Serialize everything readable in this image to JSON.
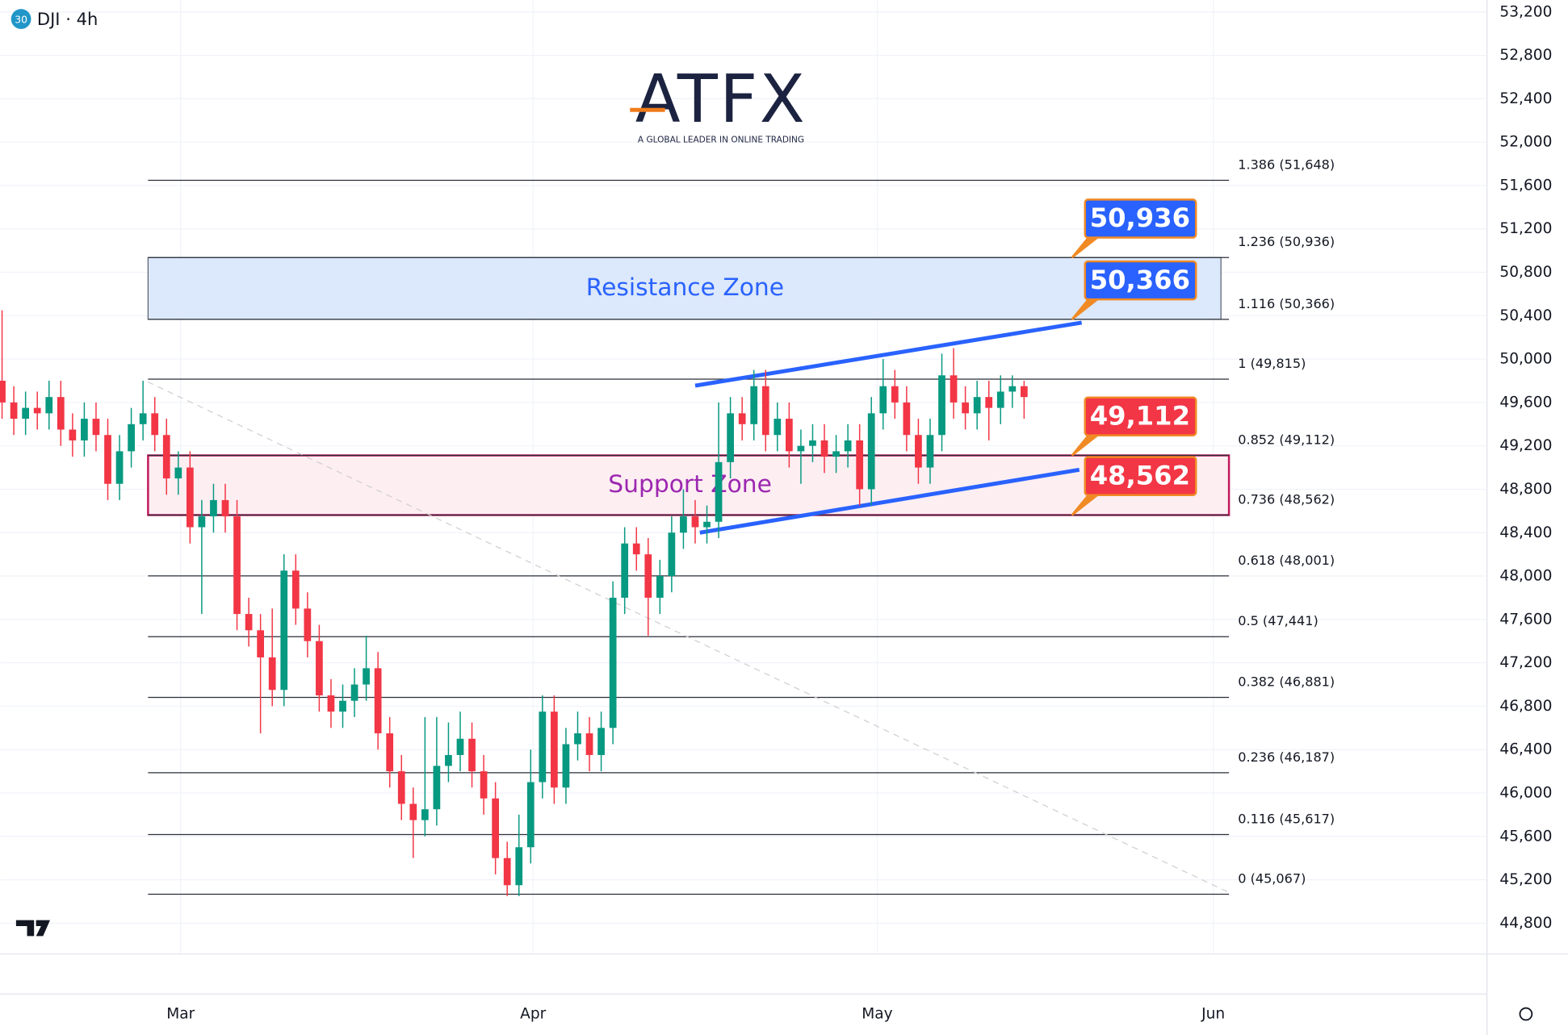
{
  "header": {
    "badge": "30",
    "symbol": "DJI · 4h"
  },
  "logo": {
    "name": "ATFX",
    "tagline": "A GLOBAL LEADER IN ONLINE TRADING"
  },
  "chart_data": {
    "type": "candlestick",
    "open": [
      49800,
      49600,
      49450,
      49550,
      49500,
      49650,
      49350,
      49250,
      49450,
      49300,
      48850,
      49150,
      49400,
      49500,
      49300,
      48900,
      49000,
      48450,
      48550,
      48700,
      48550,
      47650,
      47500,
      47250,
      46950,
      48050,
      47700,
      47400,
      46900,
      46750,
      46850,
      47000,
      47150,
      46550,
      46200,
      45900,
      45750,
      45850,
      46250,
      46350,
      46500,
      46200,
      45950,
      45400,
      45150,
      45500,
      46100,
      46750,
      46050,
      46450,
      46550,
      46350,
      46600,
      47800,
      48300,
      48200,
      47800,
      48000,
      48400,
      48550,
      48450,
      48500,
      49050,
      49500,
      49400,
      49750,
      49300,
      49450,
      49150,
      49200,
      49250,
      49100,
      49150,
      49250,
      48800,
      49500,
      49750,
      49600,
      49300,
      49000,
      49300,
      49850,
      49600,
      49500,
      49650,
      49550,
      49700,
      49750
    ],
    "high": [
      50450,
      49750,
      49700,
      49700,
      49800,
      49800,
      49500,
      49600,
      49600,
      49450,
      49300,
      49550,
      49800,
      49650,
      49450,
      49150,
      49150,
      48700,
      48850,
      48850,
      48700,
      47800,
      47650,
      47700,
      48200,
      48200,
      47850,
      47550,
      47050,
      47000,
      47150,
      47450,
      47300,
      46700,
      46350,
      46050,
      46700,
      46700,
      46650,
      46750,
      46650,
      46350,
      46100,
      45550,
      45800,
      46400,
      46900,
      46900,
      46600,
      46750,
      46700,
      46750,
      47950,
      48450,
      48450,
      48350,
      48150,
      48550,
      48800,
      48700,
      48650,
      49600,
      49650,
      49650,
      49900,
      49900,
      49600,
      49600,
      49350,
      49400,
      49400,
      49300,
      49400,
      49400,
      49650,
      50000,
      49900,
      49750,
      49450,
      49450,
      50050,
      50100,
      49750,
      49800,
      49800,
      49850,
      49850,
      49800
    ],
    "low": [
      49450,
      49300,
      49300,
      49350,
      49350,
      49200,
      49100,
      49100,
      49150,
      48700,
      48700,
      49000,
      49250,
      49150,
      48750,
      48750,
      48300,
      47650,
      48400,
      48400,
      47500,
      47350,
      46550,
      46800,
      46800,
      47550,
      47250,
      46750,
      46600,
      46600,
      46700,
      46850,
      46400,
      46050,
      45750,
      45400,
      45600,
      45700,
      46100,
      46200,
      46050,
      45800,
      45250,
      45050,
      45050,
      45350,
      45950,
      45900,
      45900,
      46300,
      46200,
      46200,
      46450,
      47650,
      48050,
      47450,
      47650,
      47850,
      48250,
      48300,
      48300,
      48350,
      48900,
      49250,
      49250,
      49150,
      49150,
      49000,
      48850,
      49050,
      48950,
      48950,
      49000,
      48650,
      48650,
      49350,
      49450,
      49150,
      48850,
      48850,
      49150,
      49450,
      49350,
      49350,
      49250,
      49400,
      49550,
      49450
    ],
    "close": [
      49600,
      49450,
      49550,
      49500,
      49650,
      49350,
      49250,
      49450,
      49300,
      48850,
      49150,
      49400,
      49500,
      49300,
      48900,
      49000,
      48450,
      48550,
      48700,
      48550,
      47650,
      47500,
      47250,
      46950,
      48050,
      47700,
      47400,
      46900,
      46750,
      46850,
      47000,
      47150,
      46550,
      46200,
      45900,
      45750,
      45850,
      46250,
      46350,
      46500,
      46200,
      45950,
      45400,
      45150,
      45500,
      46100,
      46750,
      46050,
      46450,
      46550,
      46350,
      46600,
      47800,
      48300,
      48200,
      47800,
      48000,
      48400,
      48550,
      48450,
      48500,
      49050,
      49500,
      49400,
      49750,
      49300,
      49450,
      49150,
      49200,
      49250,
      49100,
      49150,
      49250,
      48800,
      49500,
      49750,
      49600,
      49300,
      49000,
      49300,
      49850,
      49600,
      49500,
      49650,
      49550,
      49700,
      49750,
      49650
    ],
    "up_color": "#089981",
    "down_color": "#f23645",
    "xlim": [
      -0.17,
      126.4
    ],
    "xticks": [
      {
        "value": 15.2,
        "label": "Mar"
      },
      {
        "value": 45.2,
        "label": "Apr"
      },
      {
        "value": 74.5,
        "label": "May"
      },
      {
        "value": 103.1,
        "label": "Jun"
      }
    ],
    "ylim": [
      44515,
      53310
    ],
    "yticks": [
      {
        "value": 44800,
        "label": "44,800"
      },
      {
        "value": 45200,
        "label": "45,200"
      },
      {
        "value": 45600,
        "label": "45,600"
      },
      {
        "value": 46000,
        "label": "46,000"
      },
      {
        "value": 46400,
        "label": "46,400"
      },
      {
        "value": 46800,
        "label": "46,800"
      },
      {
        "value": 47200,
        "label": "47,200"
      },
      {
        "value": 47600,
        "label": "47,600"
      },
      {
        "value": 48000,
        "label": "48,000"
      },
      {
        "value": 48400,
        "label": "48,400"
      },
      {
        "value": 48800,
        "label": "48,800"
      },
      {
        "value": 49200,
        "label": "49,200"
      },
      {
        "value": 49600,
        "label": "49,600"
      },
      {
        "value": 50000,
        "label": "50,000"
      },
      {
        "value": 50400,
        "label": "50,400"
      },
      {
        "value": 50800,
        "label": "50,800"
      },
      {
        "value": 51200,
        "label": "51,200"
      },
      {
        "value": 51600,
        "label": "51,600"
      },
      {
        "value": 52000,
        "label": "52,000"
      },
      {
        "value": 52400,
        "label": "52,400"
      },
      {
        "value": 52800,
        "label": "52,800"
      },
      {
        "value": 53200,
        "label": "53,200"
      }
    ],
    "grid": true,
    "fib_levels": [
      {
        "value": 51648,
        "label": "1.386 (51,648)"
      },
      {
        "value": 50936,
        "label": "1.236 (50,936)"
      },
      {
        "value": 50366,
        "label": "1.116 (50,366)"
      },
      {
        "value": 49815,
        "label": "1 (49,815)"
      },
      {
        "value": 49112,
        "label": "0.852 (49,112)"
      },
      {
        "value": 48562,
        "label": "0.736 (48,562)"
      },
      {
        "value": 48001,
        "label": "0.618 (48,001)"
      },
      {
        "value": 47441,
        "label": "0.5 (47,441)"
      },
      {
        "value": 46881,
        "label": "0.382 (46,881)"
      },
      {
        "value": 46187,
        "label": "0.236 (46,187)"
      },
      {
        "value": 45617,
        "label": "0.116 (45,617)"
      },
      {
        "value": 45067,
        "label": "0 (45,067)"
      }
    ],
    "zones": [
      {
        "label": "Resistance Zone",
        "low": 50366,
        "high": 50936,
        "color": "#2962ff",
        "fill": "#dce8fb",
        "border": "#5a6270"
      },
      {
        "label": "Support Zone",
        "low": 48562,
        "high": 49112,
        "color": "#9c27b0",
        "fill": "#fdeef2",
        "border": "#c2185b"
      }
    ],
    "callouts": [
      {
        "value": 50936,
        "label": "50,936",
        "color": "#2962ff"
      },
      {
        "value": 50366,
        "label": "50,366",
        "color": "#2962ff"
      },
      {
        "value": 49112,
        "label": "49,112",
        "color": "#f23645"
      },
      {
        "value": 48562,
        "label": "48,562",
        "color": "#f23645"
      }
    ],
    "trendlines": [
      {
        "x": [
          59.0,
          91.9
        ],
        "y": [
          49755,
          50336
        ],
        "color": "#2962ff"
      },
      {
        "x": [
          59.4,
          91.7
        ],
        "y": [
          48400,
          48980
        ],
        "color": "#2962ff"
      },
      {
        "x": [
          12.4,
          104.4
        ],
        "y": [
          49790,
          45085
        ],
        "color": "#cfcfcf",
        "dashed": true
      }
    ]
  }
}
